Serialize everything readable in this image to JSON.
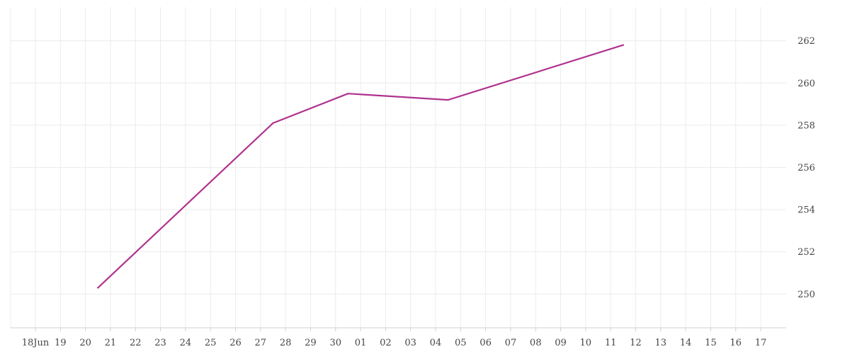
{
  "chart_data": {
    "type": "line",
    "title": "",
    "xlabel": "",
    "ylabel": "",
    "x_ticks": [
      "18Jun",
      "19",
      "20",
      "21",
      "22",
      "23",
      "24",
      "25",
      "26",
      "27",
      "28",
      "29",
      "30",
      "01",
      "02",
      "03",
      "04",
      "05",
      "06",
      "07",
      "08",
      "09",
      "10",
      "11",
      "12",
      "13",
      "14",
      "15",
      "16",
      "17"
    ],
    "y_ticks": [
      250,
      252,
      254,
      256,
      258,
      260,
      262
    ],
    "ylim": [
      248.4,
      263.6
    ],
    "grid": true,
    "y_axis_position": "right",
    "series": [
      {
        "color": "#b0328e",
        "points": [
          {
            "x": "2023-06-20T12:00",
            "y": 250.3
          },
          {
            "x": "2023-06-27T12:00",
            "y": 258.1
          },
          {
            "x": "2023-06-30T12:00",
            "y": 259.5
          },
          {
            "x": "2023-07-04T12:00",
            "y": 259.2
          },
          {
            "x": "2023-07-11T12:00",
            "y": 261.8
          }
        ]
      }
    ]
  }
}
